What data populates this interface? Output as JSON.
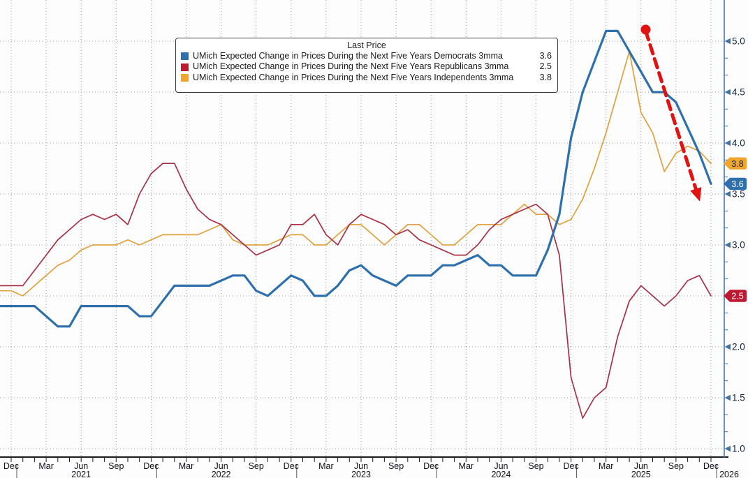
{
  "chart_data": {
    "type": "line",
    "title": "",
    "legend_title": "Last Price",
    "x_start_label": "Dec 2020",
    "x_end_label": "Dec 2025",
    "x_tick_labels": [
      "Dec",
      "Mar",
      "Jun",
      "Sep",
      "Dec",
      "Mar",
      "Jun",
      "Sep",
      "Dec",
      "Mar",
      "Jun",
      "Sep",
      "Dec",
      "Mar",
      "Jun",
      "Sep",
      "Dec",
      "Mar",
      "Jun",
      "Sep",
      "Dec"
    ],
    "year_labels": [
      {
        "label": "2021",
        "month_index": 6
      },
      {
        "label": "2022",
        "month_index": 18
      },
      {
        "label": "2023",
        "month_index": 30
      },
      {
        "label": "2024",
        "month_index": 42
      },
      {
        "label": "2025",
        "month_index": 54
      },
      {
        "label": "2026",
        "month_index": 60
      }
    ],
    "ylim": [
      1.0,
      5.0
    ],
    "ytick_step": 0.5,
    "ytick_labels": [
      "1.0",
      "1.5",
      "2.0",
      "2.5",
      "3.0",
      "3.5",
      "4.0",
      "4.5",
      "5.0"
    ],
    "grid": "dotted",
    "legend_position": "top-center",
    "series": [
      {
        "name": "UMich Expected Change in Prices During the Next Five Years Democrats 3mma",
        "last_price": "3.6",
        "line_color": "#2e6fad",
        "line_width": 3.2,
        "tag_color": "#2e6fad",
        "tag_text_color": "#ffffff",
        "values": [
          2.4,
          2.4,
          2.4,
          2.3,
          2.2,
          2.2,
          2.4,
          2.4,
          2.4,
          2.4,
          2.4,
          2.3,
          2.3,
          2.45,
          2.6,
          2.6,
          2.6,
          2.6,
          2.65,
          2.7,
          2.7,
          2.55,
          2.5,
          2.6,
          2.7,
          2.65,
          2.5,
          2.5,
          2.6,
          2.75,
          2.8,
          2.7,
          2.65,
          2.6,
          2.7,
          2.7,
          2.7,
          2.8,
          2.8,
          2.85,
          2.9,
          2.8,
          2.8,
          2.7,
          2.7,
          2.7,
          2.95,
          3.3,
          4.05,
          4.5,
          4.8,
          5.1,
          5.1,
          4.9,
          4.7,
          4.5,
          4.5,
          4.4,
          4.15,
          3.9,
          3.6
        ]
      },
      {
        "name": "UMich Expected Change in Prices During the Next Five Years Republicans 3mma",
        "last_price": "2.5",
        "line_color": "#a93145",
        "line_width": 1.7,
        "tag_color": "#bd1a32",
        "tag_text_color": "#ffffff",
        "values": [
          2.6,
          2.6,
          2.75,
          2.9,
          3.05,
          3.15,
          3.25,
          3.3,
          3.25,
          3.3,
          3.2,
          3.5,
          3.7,
          3.8,
          3.8,
          3.55,
          3.35,
          3.25,
          3.2,
          3.1,
          3.0,
          2.9,
          2.95,
          3.0,
          3.2,
          3.2,
          3.3,
          3.1,
          3.0,
          3.2,
          3.3,
          3.25,
          3.2,
          3.1,
          3.15,
          3.05,
          3.0,
          2.95,
          2.9,
          2.9,
          3.0,
          3.15,
          3.25,
          3.3,
          3.35,
          3.4,
          3.3,
          2.9,
          1.7,
          1.3,
          1.5,
          1.6,
          2.1,
          2.45,
          2.6,
          2.5,
          2.4,
          2.5,
          2.65,
          2.7,
          2.5
        ]
      },
      {
        "name": "UMich Expected Change in Prices During the Next Five Years Independents 3mma",
        "last_price": "3.8",
        "line_color": "#dfa23f",
        "line_width": 1.7,
        "tag_color": "#efa62a",
        "tag_text_color": "#14233c",
        "values": [
          2.55,
          2.5,
          2.6,
          2.7,
          2.8,
          2.85,
          2.95,
          3.0,
          3.0,
          3.0,
          3.05,
          3.0,
          3.05,
          3.1,
          3.1,
          3.1,
          3.1,
          3.15,
          3.2,
          3.05,
          3.0,
          3.0,
          3.0,
          3.05,
          3.1,
          3.1,
          3.0,
          3.0,
          3.1,
          3.2,
          3.2,
          3.1,
          3.0,
          3.1,
          3.2,
          3.2,
          3.1,
          3.0,
          3.0,
          3.1,
          3.2,
          3.2,
          3.2,
          3.3,
          3.4,
          3.3,
          3.3,
          3.2,
          3.25,
          3.45,
          3.75,
          4.1,
          4.5,
          4.9,
          4.3,
          4.1,
          3.72,
          3.9,
          3.97,
          3.92,
          3.8
        ]
      }
    ],
    "annotation_arrow": {
      "color": "#e11212",
      "style": "dashed",
      "from": {
        "month_index": 54.4,
        "value": 5.1
      },
      "to": {
        "month_index": 58.7,
        "value": 3.55
      }
    },
    "colors": {
      "grid": "#9b9b9b",
      "axis_bottom": "#1c1c1c",
      "axis_right": "#3f72a5",
      "axis_text": "#10243f",
      "x_text": "#101018",
      "background": "#fdfdfd"
    }
  },
  "legend": {
    "title": "Last Price",
    "rows": [
      {
        "label": "UMich Expected Change in Prices During the Next Five Years Democrats 3mma",
        "value": "3.6"
      },
      {
        "label": "UMich Expected Change in Prices During the Next Five Years Republicans 3mma",
        "value": "2.5"
      },
      {
        "label": "UMich Expected Change in Prices During the Next Five Years Independents 3mma",
        "value": "3.8"
      }
    ]
  }
}
